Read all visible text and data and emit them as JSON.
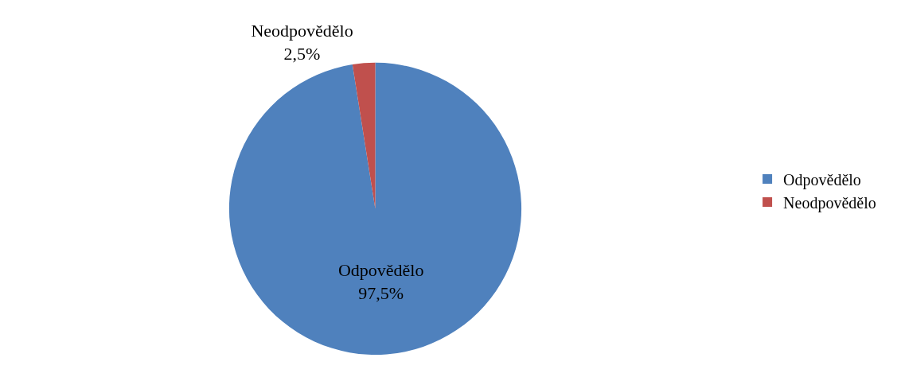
{
  "chart_data": {
    "type": "pie",
    "categories": [
      "Odpovědělo",
      "Neodpovědělo"
    ],
    "values": [
      97.5,
      2.5
    ],
    "colors": [
      "#4f81bd",
      "#c0504d"
    ],
    "value_labels": [
      "97,5%",
      "2,5%"
    ],
    "legend": "right"
  }
}
